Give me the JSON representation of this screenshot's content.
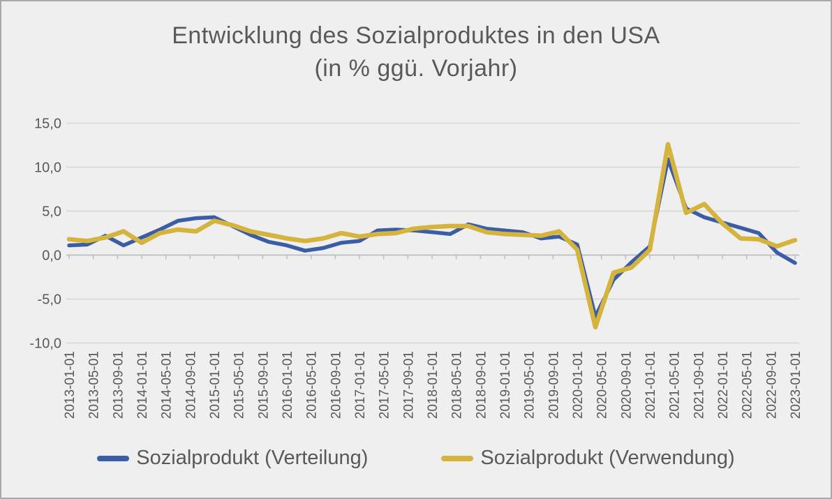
{
  "title": {
    "line1": "Entwicklung des Sozialproduktes in den USA",
    "line2": "(in % ggü. Vorjahr)"
  },
  "legend": {
    "item1": "Sozialprodukt (Verteilung)",
    "item2": "Sozialprodukt (Verwendung)"
  },
  "colors": {
    "background": "#efefef",
    "frame_border": "#a9a9a9",
    "text_gray": "#595959",
    "gridline": "#d6d6d6",
    "axis_line": "#bdbdbd",
    "series_verteilung": "#3a5da6",
    "series_verwendung": "#d4b43d"
  },
  "chart_data": {
    "type": "line",
    "title": "Entwicklung des Sozialproduktes in den USA (in % ggü. Vorjahr)",
    "ylabel": "",
    "xlabel": "",
    "ylim": [
      -10,
      15
    ],
    "grid": true,
    "legend_position": "bottom",
    "x_frequency": "quarterly",
    "x_categories": [
      "2013-01",
      "2013-04",
      "2013-07",
      "2013-10",
      "2014-01",
      "2014-04",
      "2014-07",
      "2014-10",
      "2015-01",
      "2015-04",
      "2015-07",
      "2015-10",
      "2016-01",
      "2016-04",
      "2016-07",
      "2016-10",
      "2017-01",
      "2017-04",
      "2017-07",
      "2017-10",
      "2018-01",
      "2018-04",
      "2018-07",
      "2018-10",
      "2019-01",
      "2019-04",
      "2019-07",
      "2019-10",
      "2020-01",
      "2020-04",
      "2020-07",
      "2020-10",
      "2021-01",
      "2021-04",
      "2021-07",
      "2021-10",
      "2022-01",
      "2022-04",
      "2022-07",
      "2022-10",
      "2023-01"
    ],
    "x_tick_labels": [
      "2013-01-01",
      "2013-05-01",
      "2013-09-01",
      "2014-01-01",
      "2014-05-01",
      "2014-09-01",
      "2015-01-01",
      "2015-05-01",
      "2015-09-01",
      "2016-01-01",
      "2016-05-01",
      "2016-09-01",
      "2017-01-01",
      "2017-05-01",
      "2017-09-01",
      "2018-01-01",
      "2018-05-01",
      "2018-09-01",
      "2019-01-01",
      "2019-05-01",
      "2019-09-01",
      "2020-01-01",
      "2020-05-01",
      "2020-09-01",
      "2021-01-01",
      "2021-05-01",
      "2021-09-01",
      "2022-01-01",
      "2022-05-01",
      "2022-09-01",
      "2023-01-01"
    ],
    "y_ticks": [
      {
        "value": 15,
        "label": "15,0"
      },
      {
        "value": 10,
        "label": "10,0"
      },
      {
        "value": 5,
        "label": "5,0"
      },
      {
        "value": 0,
        "label": "0,0"
      },
      {
        "value": -5,
        "label": "-5,0"
      },
      {
        "value": -10,
        "label": "-10,0"
      }
    ],
    "series": [
      {
        "name": "Sozialprodukt (Verteilung)",
        "color": "#3a5da6",
        "stroke_width": 5.5,
        "values": [
          1.1,
          1.2,
          2.2,
          1.1,
          2.0,
          2.9,
          3.9,
          4.2,
          4.3,
          3.3,
          2.3,
          1.5,
          1.1,
          0.5,
          0.8,
          1.4,
          1.6,
          2.8,
          2.9,
          2.8,
          2.6,
          2.4,
          3.5,
          3.0,
          2.8,
          2.6,
          1.9,
          2.1,
          1.2,
          -7.0,
          -2.8,
          -0.8,
          1.0,
          10.9,
          5.3,
          4.3,
          3.7,
          3.1,
          2.5,
          0.3,
          -0.9
        ]
      },
      {
        "name": "Sozialprodukt (Verwendung)",
        "color": "#d4b43d",
        "stroke_width": 6.5,
        "values": [
          1.8,
          1.6,
          2.0,
          2.7,
          1.4,
          2.5,
          2.9,
          2.7,
          3.9,
          3.4,
          2.7,
          2.3,
          1.9,
          1.6,
          1.9,
          2.5,
          2.1,
          2.4,
          2.5,
          3.0,
          3.2,
          3.3,
          3.3,
          2.6,
          2.4,
          2.3,
          2.2,
          2.7,
          0.6,
          -8.2,
          -2.0,
          -1.4,
          0.6,
          12.6,
          4.8,
          5.8,
          3.6,
          1.9,
          1.8,
          1.0,
          1.7
        ]
      }
    ]
  }
}
